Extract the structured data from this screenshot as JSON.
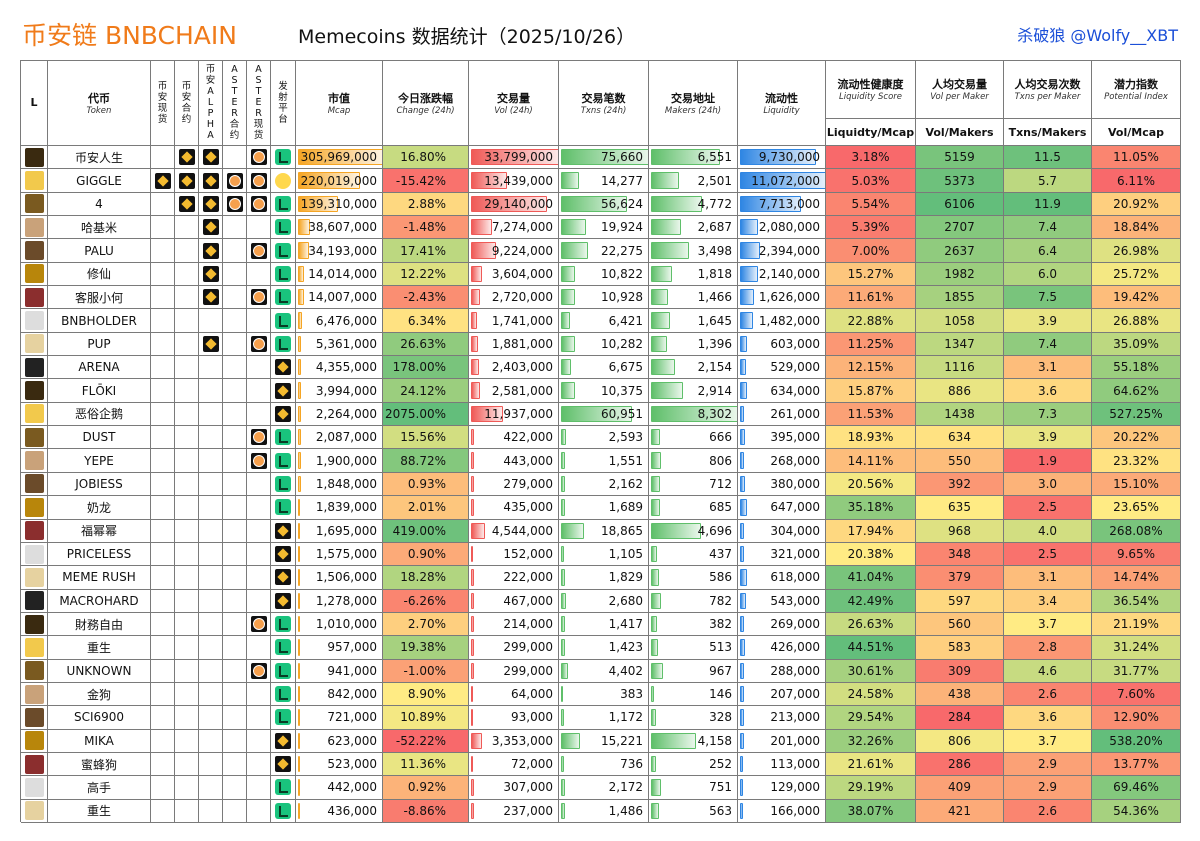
{
  "header": {
    "brand": "币安链 BNBCHAIN",
    "title": "Memecoins 数据统计（2025/10/26）",
    "author": "杀破狼 @Wolfy__XBT"
  },
  "table": {
    "columns": [
      {
        "cn": "L"
      },
      {
        "cn": "代币",
        "en": "Token"
      },
      {
        "cn": "币安现货"
      },
      {
        "cn": "币安合约"
      },
      {
        "cn": "币安ALPHA"
      },
      {
        "cn": "ASTER合约"
      },
      {
        "cn": "ASTER现货"
      },
      {
        "cn": "发射平台"
      },
      {
        "cn": "市值",
        "en": "Mcap"
      },
      {
        "cn": "今日涨跌幅",
        "en": "Change (24h)"
      },
      {
        "cn": "交易量",
        "en": "Vol (24h)"
      },
      {
        "cn": "交易笔数",
        "en": "Txns (24h)"
      },
      {
        "cn": "交易地址",
        "en": "Makers (24h)"
      },
      {
        "cn": "流动性",
        "en": "Liquidity"
      },
      {
        "cn": "流动性健康度",
        "en": "Liquidity Score",
        "sub": "Liquidty/Mcap"
      },
      {
        "cn": "人均交易量",
        "en": "Vol per Maker",
        "sub": "Vol/Makers"
      },
      {
        "cn": "人均交易次数",
        "en": "Txns per Maker",
        "sub": "Txns/Makers"
      },
      {
        "cn": "潜力指数",
        "en": "Potential Index",
        "sub": "Vol/Mcap"
      }
    ],
    "rows": [
      [
        "币安人生",
        "305,969,000",
        "16.80%",
        "33,799,000",
        "75,660",
        "6,551",
        "9,730,000",
        "3.18%",
        "5159",
        "11.5",
        "11.05%",
        "-BB-AF"
      ],
      [
        "GIGGLE",
        "220,019,000",
        "-15.42%",
        "13,439,000",
        "14,277",
        "2,501",
        "11,072,000",
        "5.03%",
        "5373",
        "5.7",
        "6.11%",
        "BBBAAG"
      ],
      [
        "4",
        "139,310,000",
        "2.88%",
        "29,140,000",
        "56,624",
        "4,772",
        "7,713,000",
        "5.54%",
        "6106",
        "11.9",
        "20.92%",
        "-BBAAF"
      ],
      [
        "哈基米",
        "38,607,000",
        "-1.48%",
        "7,274,000",
        "19,924",
        "2,687",
        "2,080,000",
        "5.39%",
        "2707",
        "7.4",
        "18.84%",
        "--B--F"
      ],
      [
        "PALU",
        "34,193,000",
        "17.41%",
        "9,224,000",
        "22,275",
        "3,498",
        "2,394,000",
        "7.00%",
        "2637",
        "6.4",
        "26.98%",
        "--B-AF"
      ],
      [
        "修仙",
        "14,014,000",
        "12.22%",
        "3,604,000",
        "10,822",
        "1,818",
        "2,140,000",
        "15.27%",
        "1982",
        "6.0",
        "25.72%",
        "--B--F"
      ],
      [
        "客服小何",
        "14,007,000",
        "-2.43%",
        "2,720,000",
        "10,928",
        "1,466",
        "1,626,000",
        "11.61%",
        "1855",
        "7.5",
        "19.42%",
        "--B-AF"
      ],
      [
        "BNBHOLDER",
        "6,476,000",
        "6.34%",
        "1,741,000",
        "6,421",
        "1,645",
        "1,482,000",
        "22.88%",
        "1058",
        "3.9",
        "26.88%",
        "-----F"
      ],
      [
        "PUP",
        "5,361,000",
        "26.63%",
        "1,881,000",
        "10,282",
        "1,396",
        "603,000",
        "11.25%",
        "1347",
        "7.4",
        "35.09%",
        "--B-AF"
      ],
      [
        "ARENA",
        "4,355,000",
        "178.00%",
        "2,403,000",
        "6,675",
        "2,154",
        "529,000",
        "12.15%",
        "1116",
        "3.1",
        "55.18%",
        "-----B"
      ],
      [
        "FLŌKI",
        "3,994,000",
        "24.12%",
        "2,581,000",
        "10,375",
        "2,914",
        "634,000",
        "15.87%",
        "886",
        "3.6",
        "64.62%",
        "-----B"
      ],
      [
        "恶俗企鹅",
        "2,264,000",
        "2075.00%",
        "11,937,000",
        "60,951",
        "8,302",
        "261,000",
        "11.53%",
        "1438",
        "7.3",
        "527.25%",
        "-----B"
      ],
      [
        "DUST",
        "2,087,000",
        "15.56%",
        "422,000",
        "2,593",
        "666",
        "395,000",
        "18.93%",
        "634",
        "3.9",
        "20.22%",
        "----AF"
      ],
      [
        "YEPE",
        "1,900,000",
        "88.72%",
        "443,000",
        "1,551",
        "806",
        "268,000",
        "14.11%",
        "550",
        "1.9",
        "23.32%",
        "----AF"
      ],
      [
        "JOBIESS",
        "1,848,000",
        "0.93%",
        "279,000",
        "2,162",
        "712",
        "380,000",
        "20.56%",
        "392",
        "3.0",
        "15.10%",
        "-----F"
      ],
      [
        "奶龙",
        "1,839,000",
        "2.01%",
        "435,000",
        "1,689",
        "685",
        "647,000",
        "35.18%",
        "635",
        "2.5",
        "23.65%",
        "-----F"
      ],
      [
        "福幂幂",
        "1,695,000",
        "419.00%",
        "4,544,000",
        "18,865",
        "4,696",
        "304,000",
        "17.94%",
        "968",
        "4.0",
        "268.08%",
        "-----B"
      ],
      [
        "PRICELESS",
        "1,575,000",
        "0.90%",
        "152,000",
        "1,105",
        "437",
        "321,000",
        "20.38%",
        "348",
        "2.5",
        "9.65%",
        "-----B"
      ],
      [
        "MEME RUSH",
        "1,506,000",
        "18.28%",
        "222,000",
        "1,829",
        "586",
        "618,000",
        "41.04%",
        "379",
        "3.1",
        "14.74%",
        "-----B"
      ],
      [
        "MACROHARD",
        "1,278,000",
        "-6.26%",
        "467,000",
        "2,680",
        "782",
        "543,000",
        "42.49%",
        "597",
        "3.4",
        "36.54%",
        "-----B"
      ],
      [
        "財務自由",
        "1,010,000",
        "2.70%",
        "214,000",
        "1,417",
        "382",
        "269,000",
        "26.63%",
        "560",
        "3.7",
        "21.19%",
        "----AF"
      ],
      [
        "重生",
        "957,000",
        "19.38%",
        "299,000",
        "1,423",
        "513",
        "426,000",
        "44.51%",
        "583",
        "2.8",
        "31.24%",
        "-----F"
      ],
      [
        "UNKNOWN",
        "941,000",
        "-1.00%",
        "299,000",
        "4,402",
        "967",
        "288,000",
        "30.61%",
        "309",
        "4.6",
        "31.77%",
        "----AF"
      ],
      [
        "金狗",
        "842,000",
        "8.90%",
        "64,000",
        "383",
        "146",
        "207,000",
        "24.58%",
        "438",
        "2.6",
        "7.60%",
        "-----F"
      ],
      [
        "SCI6900",
        "721,000",
        "10.89%",
        "93,000",
        "1,172",
        "328",
        "213,000",
        "29.54%",
        "284",
        "3.6",
        "12.90%",
        "-----F"
      ],
      [
        "MIKA",
        "623,000",
        "-52.22%",
        "3,353,000",
        "15,221",
        "4,158",
        "201,000",
        "32.26%",
        "806",
        "3.7",
        "538.20%",
        "-----B"
      ],
      [
        "蜜蜂狗",
        "523,000",
        "11.36%",
        "72,000",
        "736",
        "252",
        "113,000",
        "21.61%",
        "286",
        "2.9",
        "13.77%",
        "-----B"
      ],
      [
        "高手",
        "442,000",
        "0.92%",
        "307,000",
        "2,172",
        "751",
        "129,000",
        "29.19%",
        "409",
        "2.9",
        "69.46%",
        "-----F"
      ],
      [
        "重生",
        "436,000",
        "-8.86%",
        "237,000",
        "1,486",
        "563",
        "166,000",
        "38.07%",
        "421",
        "2.6",
        "54.36%",
        "-----F"
      ]
    ]
  }
}
